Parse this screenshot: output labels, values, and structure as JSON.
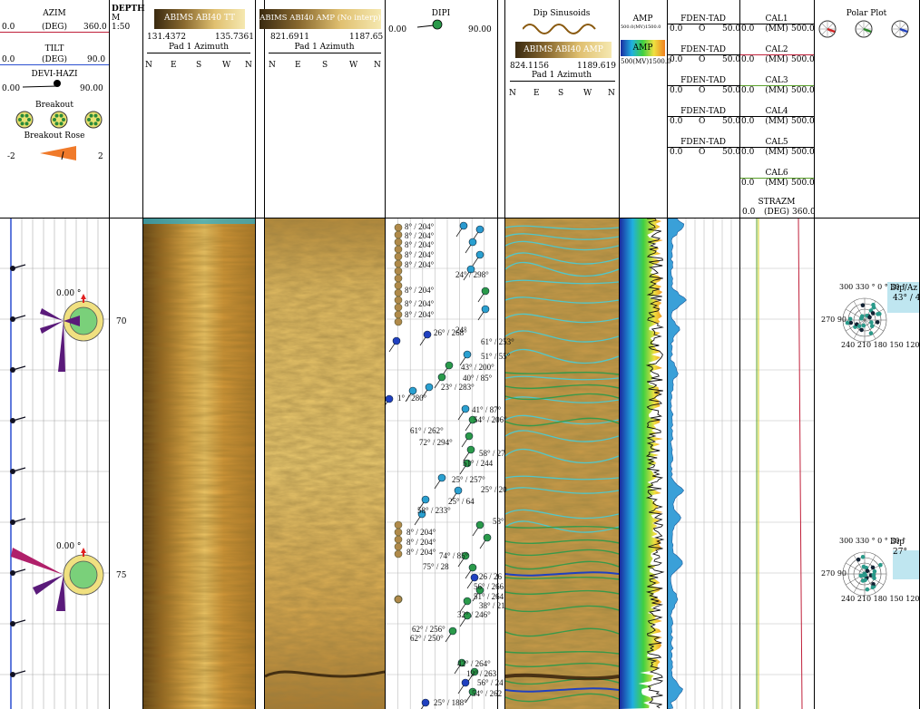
{
  "tracks": {
    "azim": {
      "name": "AZIM",
      "min": "0.0",
      "unit": "(DEG)",
      "max": "360.0"
    },
    "tilt": {
      "name": "TILT",
      "min": "0.0",
      "unit": "(DEG)",
      "max": "90.0"
    },
    "devi": {
      "name": "DEVI-HAZI",
      "min": "0.00",
      "max": "90.00"
    },
    "breakout": {
      "name": "Breakout"
    },
    "rose": {
      "name": "Breakout Rose",
      "min": "-2",
      "max": "2"
    },
    "depth": {
      "name": "DEPTH",
      "unit": "M",
      "scale": "1:50"
    },
    "tt": {
      "name": "ABIMS ABI40 TT",
      "min": "131.4372",
      "max": "135.7361",
      "pad": "Pad 1 Azimuth",
      "dirs": [
        "N",
        "E",
        "S",
        "W",
        "N"
      ]
    },
    "amp": {
      "name": "ABIMS ABI40 AMP (No interp)",
      "min": "821.6911",
      "max": "1187.65",
      "pad": "Pad 1 Azimuth",
      "dirs": [
        "N",
        "E",
        "S",
        "W",
        "N"
      ]
    },
    "dipi": {
      "name": "DIPI",
      "min": "0.00",
      "max": "90.00"
    },
    "sinus": {
      "name": "Dip Sinusoids",
      "sub": "ABIMS ABI40 AMP",
      "min": "824.1156",
      "max": "1189.619",
      "pad": "Pad 1 Azimuth",
      "dirs": [
        "N",
        "E",
        "S",
        "W",
        "N"
      ]
    },
    "ampc": {
      "name": "AMP",
      "sub": "AMP",
      "scale": "500.0(MV)1500.0",
      "scale2": "500(MV)1500.0"
    },
    "fden": [
      {
        "name": "FDEN-TAD",
        "min": "0.0",
        "mid": "O",
        "max": "50.0"
      },
      {
        "name": "FDEN-TAD",
        "min": "0.0",
        "mid": "O",
        "max": "50.0"
      },
      {
        "name": "FDEN-TAD",
        "min": "0.0",
        "mid": "O",
        "max": "50.0"
      },
      {
        "name": "FDEN-TAD",
        "min": "0.0",
        "mid": "O",
        "max": "50.0"
      },
      {
        "name": "FDEN-TAD",
        "min": "0.0",
        "mid": "O",
        "max": "50.0"
      }
    ],
    "cal": [
      {
        "name": "CAL1",
        "min": "0.0",
        "unit": "(MM)",
        "max": "500.0"
      },
      {
        "name": "CAL2",
        "min": "0.0",
        "unit": "(MM)",
        "max": "500.0"
      },
      {
        "name": "CAL3",
        "min": "0.0",
        "unit": "(MM)",
        "max": "500.0"
      },
      {
        "name": "CAL4",
        "min": "0.0",
        "unit": "(MM)",
        "max": "500.0"
      },
      {
        "name": "CAL5",
        "min": "0.0",
        "unit": "(MM)",
        "max": "500.0"
      },
      {
        "name": "CAL6",
        "min": "0.0",
        "unit": "(MM)",
        "max": "500.0"
      }
    ],
    "strazm": {
      "name": "STRAZM",
      "min": "0.0",
      "unit": "(DEG)",
      "max": "360.0"
    },
    "polar": {
      "name": "Polar Plot"
    }
  },
  "depth_labels": [
    "70",
    "75"
  ],
  "rose_labels": [
    "0.00 °",
    "0.00 °"
  ],
  "polar_labels": [
    {
      "ring": "300 330 ° 0 ° 30 °",
      "bottom": "240 210 180 150 120",
      "side": "270 90",
      "box": "Dip/Az",
      "val": "43° / 4"
    },
    {
      "ring": "300 330 ° 0 ° 30 °",
      "bottom": "240 210 180 150 120",
      "side": "270 90",
      "box": "Dip",
      "val": "27°"
    }
  ],
  "dip_tags": [
    "8° / 204°",
    "8° / 204°",
    "8° / 204°",
    "8° / 204°",
    "8° / 204°",
    "8° / 204°",
    "8° / 204°",
    "8° / 204°",
    "24° / 298°",
    "26° / 268°",
    "24°",
    "61° / 253°",
    "51° / 55°",
    "43° / 200°",
    "40° / 85°",
    "23° / 283°",
    "1° / 280°",
    "41° / 87°",
    "54° / 206°",
    "61° / 262°",
    "72° / 294°",
    "58° / 27",
    "51° / 244",
    "25° / 257°",
    "25° / 20",
    "25° / 64",
    "58° / 233°",
    "58°",
    "8° / 204°",
    "8° / 204°",
    "8° / 204°",
    "74° / 85°",
    "75° / 28",
    "26 / 26",
    "56° / 266",
    "51° / 264",
    "38° / 21",
    "32° / 246°",
    "62° / 256°",
    "62° / 250°",
    "42° / 264°",
    "19° / 263",
    "56° / 24",
    "54° / 262",
    "25° / 188°"
  ],
  "colors": {
    "azim": "#c0203a",
    "tilt": "#2b4fd0",
    "caliper": "#5aa02a",
    "rose": "#f07a2a",
    "bar": "#5a1a7a",
    "disk": "#7ad07a"
  }
}
